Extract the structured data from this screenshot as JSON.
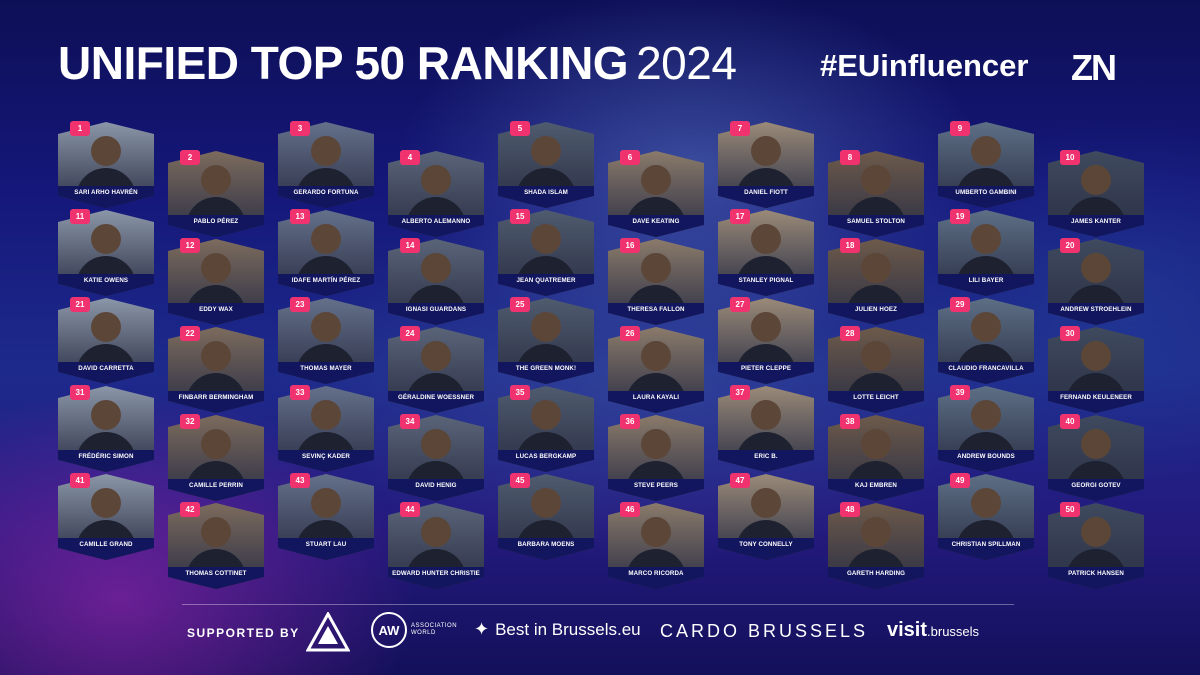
{
  "header": {
    "title_main": "UNIFIED TOP 50 RANKING",
    "title_year": "2024",
    "hashtag": "#EUinfluencer",
    "brand": "ZN"
  },
  "colors": {
    "badge": "#f0336f",
    "label_bg": "#12165e",
    "bg_dark": "#13105a"
  },
  "ranking": [
    {
      "rank": "1",
      "name": "SARI ARHO HAVRÉN"
    },
    {
      "rank": "2",
      "name": "PABLO PÉREZ"
    },
    {
      "rank": "3",
      "name": "GERARDO FORTUNA"
    },
    {
      "rank": "4",
      "name": "ALBERTO ALEMANNO"
    },
    {
      "rank": "5",
      "name": "SHADA ISLAM"
    },
    {
      "rank": "6",
      "name": "DAVE KEATING"
    },
    {
      "rank": "7",
      "name": "DANIEL FIOTT"
    },
    {
      "rank": "8",
      "name": "SAMUEL STOLTON"
    },
    {
      "rank": "9",
      "name": "UMBERTO GAMBINI"
    },
    {
      "rank": "10",
      "name": "JAMES KANTER"
    },
    {
      "rank": "11",
      "name": "KATIE OWENS"
    },
    {
      "rank": "12",
      "name": "EDDY WAX"
    },
    {
      "rank": "13",
      "name": "IDAFE MARTÍN PÉREZ"
    },
    {
      "rank": "14",
      "name": "IGNASI GUARDANS"
    },
    {
      "rank": "15",
      "name": "JEAN QUATREMER"
    },
    {
      "rank": "16",
      "name": "THERESA FALLON"
    },
    {
      "rank": "17",
      "name": "STANLEY PIGNAL"
    },
    {
      "rank": "18",
      "name": "JULIEN HOEZ"
    },
    {
      "rank": "19",
      "name": "LILI BAYER"
    },
    {
      "rank": "20",
      "name": "ANDREW STROEHLEIN"
    },
    {
      "rank": "21",
      "name": "DAVID CARRETTA"
    },
    {
      "rank": "22",
      "name": "FINBARR BERMINGHAM"
    },
    {
      "rank": "23",
      "name": "THOMAS MAYER"
    },
    {
      "rank": "24",
      "name": "GÉRALDINE WOESSNER"
    },
    {
      "rank": "25",
      "name": "THE GREEN MONK!"
    },
    {
      "rank": "26",
      "name": "LAURA KAYALI"
    },
    {
      "rank": "27",
      "name": "PIETER CLEPPE"
    },
    {
      "rank": "28",
      "name": "LOTTE LEICHT"
    },
    {
      "rank": "29",
      "name": "CLAUDIO FRANCAVILLA"
    },
    {
      "rank": "30",
      "name": "FERNAND KEULENEER"
    },
    {
      "rank": "31",
      "name": "FRÉDÉRIC SIMON"
    },
    {
      "rank": "32",
      "name": "CAMILLE PERRIN"
    },
    {
      "rank": "33",
      "name": "SEVINÇ KADER"
    },
    {
      "rank": "34",
      "name": "DAVID HENIG"
    },
    {
      "rank": "35",
      "name": "LUCAS BERGKAMP"
    },
    {
      "rank": "36",
      "name": "STEVE PEERS"
    },
    {
      "rank": "37",
      "name": "ERIC B."
    },
    {
      "rank": "38",
      "name": "KAJ EMBREN"
    },
    {
      "rank": "39",
      "name": "ANDREW BOUNDS"
    },
    {
      "rank": "40",
      "name": "GEORGI GOTEV"
    },
    {
      "rank": "41",
      "name": "CAMILLE GRAND"
    },
    {
      "rank": "42",
      "name": "THOMAS COTTINET"
    },
    {
      "rank": "43",
      "name": "STUART LAU"
    },
    {
      "rank": "44",
      "name": "EDWARD HUNTER CHRISTIE"
    },
    {
      "rank": "45",
      "name": "BARBARA MOENS"
    },
    {
      "rank": "46",
      "name": "MARCO RICORDA"
    },
    {
      "rank": "47",
      "name": "TONY CONNELLY"
    },
    {
      "rank": "48",
      "name": "GARETH HARDING"
    },
    {
      "rank": "49",
      "name": "CHRISTIAN SPILLMAN"
    },
    {
      "rank": "50",
      "name": "PATRICK HANSEN"
    }
  ],
  "footer": {
    "supported_by": "SUPPORTED BY",
    "sponsor_aw_mark": "AW",
    "sponsor_aw_line1": "ASSOCIATION",
    "sponsor_aw_line2": "WORLD",
    "sponsor_bib": "Best in Brussels.eu",
    "sponsor_cardo": "CARDO BRUSSELS",
    "sponsor_visit": "visit",
    "sponsor_visit_suffix": ".brussels"
  }
}
